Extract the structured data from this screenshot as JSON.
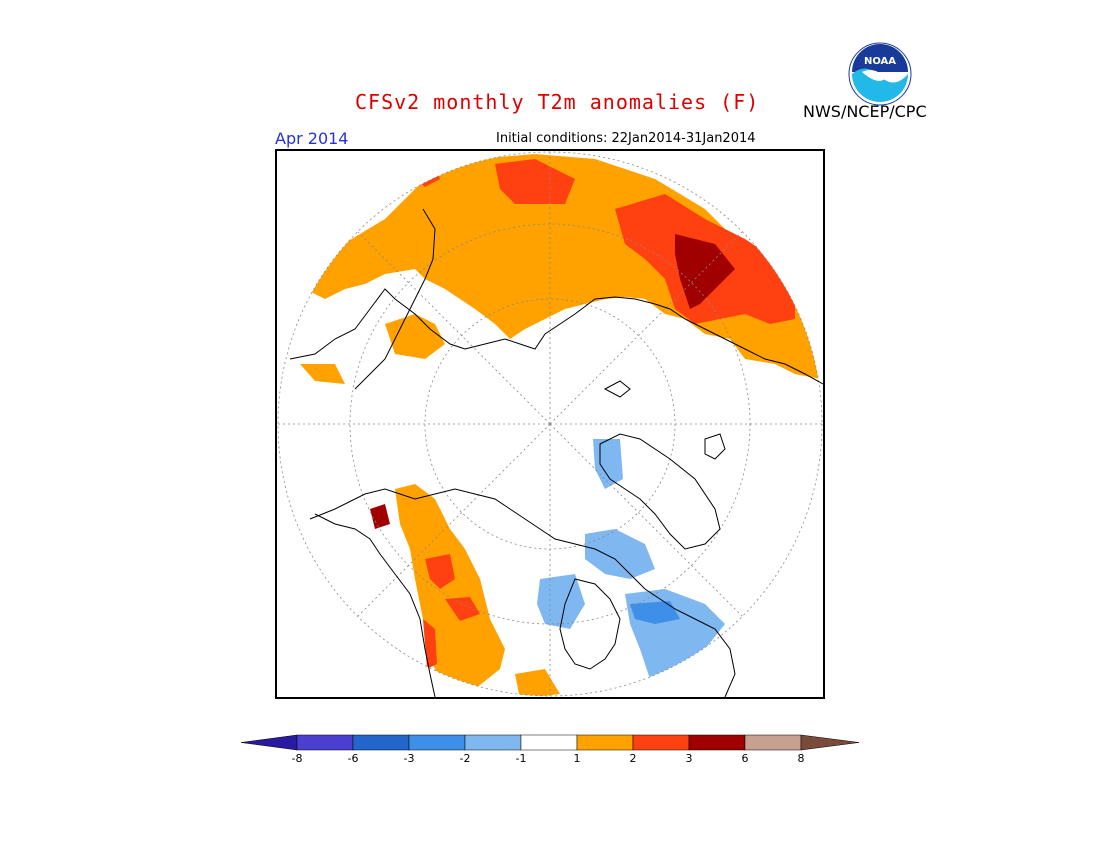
{
  "title": "CFSv2 monthly T2m anomalies (F)",
  "month": "Apr 2014",
  "initial_conditions": "Initial conditions: 22Jan2014-31Jan2014",
  "agency": "NWS/NCEP/CPC",
  "logo_text": "NOAA",
  "colors": {
    "title": "#dd0000",
    "month": "#2233dd"
  },
  "colorbar": {
    "labels": [
      "-8",
      "-6",
      "-3",
      "-2",
      "-1",
      "1",
      "2",
      "3",
      "6",
      "8"
    ],
    "bins": [
      {
        "color": "#2a1aa0"
      },
      {
        "color": "#4a3fd0"
      },
      {
        "color": "#2266cc"
      },
      {
        "color": "#3d8fe8"
      },
      {
        "color": "#7fb7f0"
      },
      {
        "color": "#ffffff"
      },
      {
        "color": "#ffa200"
      },
      {
        "color": "#ff4010"
      },
      {
        "color": "#a00000"
      },
      {
        "color": "#c8a090"
      },
      {
        "color": "#7a4a3a"
      }
    ]
  }
}
